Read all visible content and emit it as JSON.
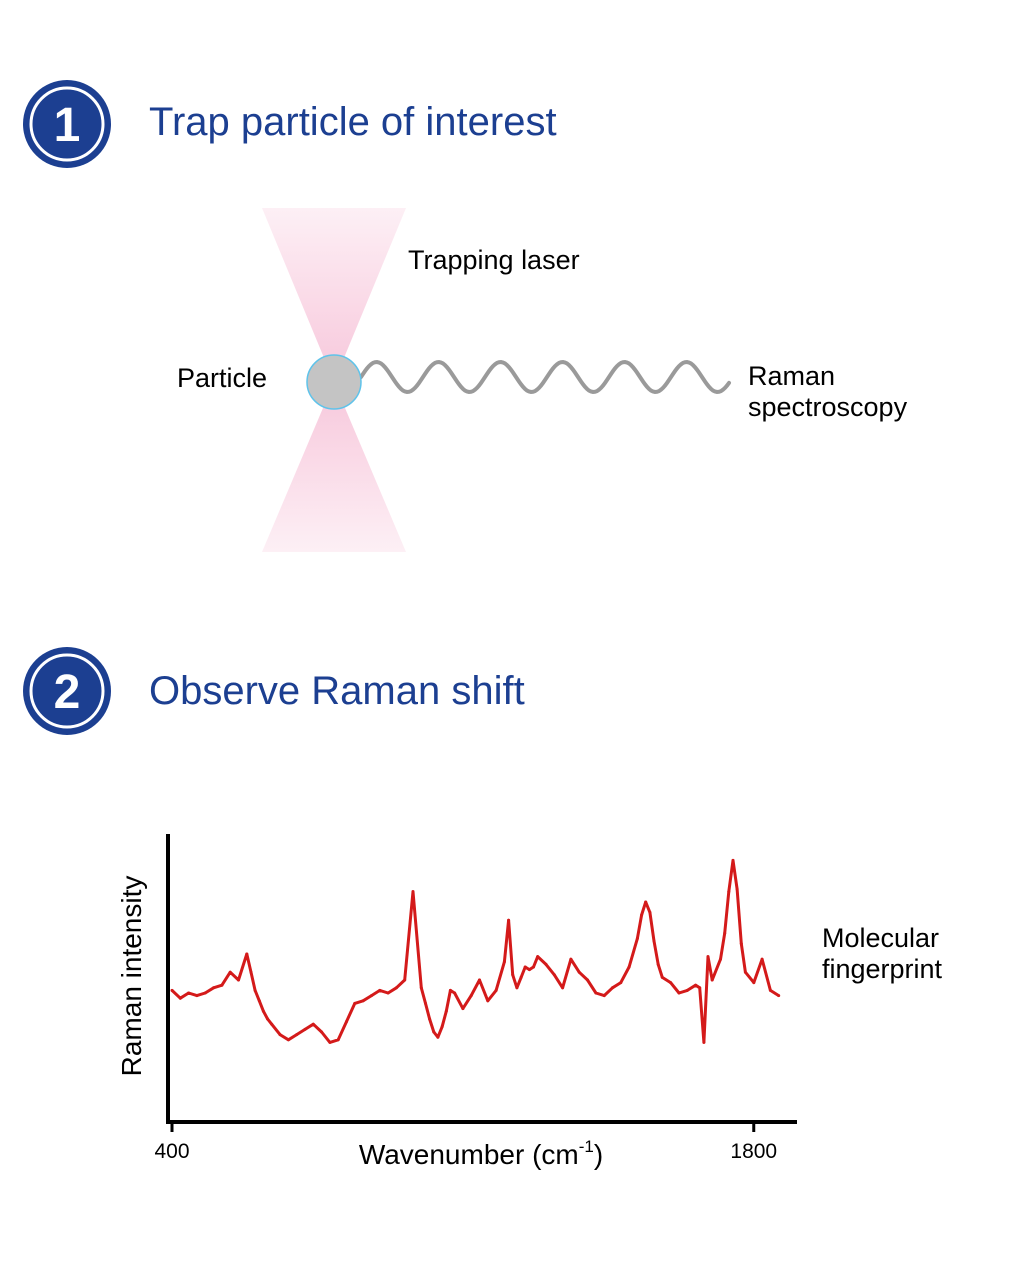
{
  "colors": {
    "badge": "#1c3f91",
    "title": "#1c3f91",
    "laser": "#f3a9c8",
    "particle_fill": "#c4c4c4",
    "particle_stroke": "#5fc3ea",
    "wave": "#9a9a9a",
    "spectrum": "#d41a1a",
    "axis": "#000000"
  },
  "step1": {
    "number": "1",
    "title": "Trap particle of interest",
    "trapping_laser_label": "Trapping laser",
    "particle_label": "Particle",
    "raman_label_line1": "Raman",
    "raman_label_line2": "spectroscopy"
  },
  "step2": {
    "number": "2",
    "title": "Observe Raman shift",
    "fingerprint_line1": "Molecular",
    "fingerprint_line2": "fingerprint"
  },
  "chart_data": {
    "type": "line",
    "ylabel": "Raman intensity",
    "xlabel_main": "Wavenumber (cm",
    "xlabel_sup": "-1",
    "xlabel_close": ")",
    "x_ticks": [
      "400",
      "1800"
    ],
    "xlim": [
      400,
      1880
    ],
    "ylim": [
      0,
      10
    ],
    "x": [
      400,
      420,
      440,
      460,
      480,
      500,
      520,
      540,
      560,
      580,
      590,
      600,
      610,
      620,
      630,
      640,
      660,
      680,
      700,
      720,
      740,
      760,
      780,
      800,
      820,
      840,
      860,
      880,
      900,
      920,
      940,
      960,
      980,
      1000,
      1010,
      1020,
      1030,
      1040,
      1050,
      1060,
      1070,
      1080,
      1100,
      1120,
      1140,
      1160,
      1180,
      1200,
      1210,
      1220,
      1230,
      1240,
      1250,
      1260,
      1270,
      1280,
      1300,
      1320,
      1340,
      1360,
      1380,
      1400,
      1420,
      1440,
      1460,
      1480,
      1500,
      1520,
      1530,
      1540,
      1550,
      1560,
      1570,
      1580,
      1600,
      1620,
      1640,
      1660,
      1670,
      1680,
      1690,
      1700,
      1720,
      1730,
      1740,
      1750,
      1760,
      1770,
      1780,
      1800,
      1820,
      1840,
      1860
    ],
    "y": [
      4.6,
      4.3,
      4.5,
      4.4,
      4.5,
      4.7,
      4.8,
      5.3,
      5.0,
      6.0,
      5.3,
      4.6,
      4.2,
      3.8,
      3.5,
      3.3,
      2.9,
      2.7,
      2.9,
      3.1,
      3.3,
      3.0,
      2.6,
      2.7,
      3.4,
      4.1,
      4.2,
      4.4,
      4.6,
      4.5,
      4.7,
      5.0,
      8.4,
      4.7,
      4.1,
      3.5,
      3.0,
      2.8,
      3.2,
      3.8,
      4.6,
      4.5,
      3.9,
      4.4,
      5.0,
      4.2,
      4.6,
      5.7,
      7.3,
      5.2,
      4.7,
      5.1,
      5.5,
      5.4,
      5.5,
      5.9,
      5.6,
      5.2,
      4.7,
      5.8,
      5.3,
      5.0,
      4.5,
      4.4,
      4.7,
      4.9,
      5.5,
      6.6,
      7.5,
      8.0,
      7.6,
      6.5,
      5.6,
      5.1,
      4.9,
      4.5,
      4.6,
      4.8,
      4.7,
      2.6,
      5.9,
      5.0,
      5.8,
      6.8,
      8.4,
      9.6,
      8.5,
      6.4,
      5.3,
      4.9,
      5.8,
      4.6,
      4.4
    ]
  }
}
